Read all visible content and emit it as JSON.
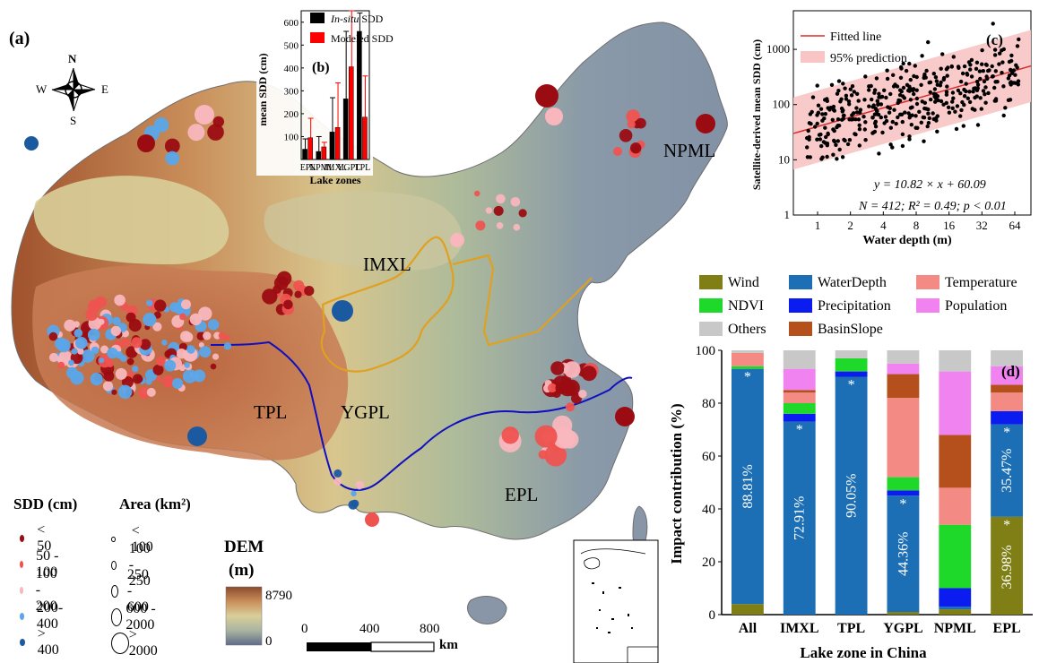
{
  "map": {
    "panel_tag": "(a)",
    "compass": {
      "n": "N",
      "s": "S",
      "e": "E",
      "w": "W"
    },
    "zones": [
      {
        "id": "tpl",
        "label": "TPL"
      },
      {
        "id": "ygpl",
        "label": "YGPL"
      },
      {
        "id": "imxl",
        "label": "IMXL"
      },
      {
        "id": "npml",
        "label": "NPML"
      },
      {
        "id": "epl",
        "label": "EPL"
      }
    ],
    "sdd_legend": {
      "title": "SDD (cm)",
      "items": [
        {
          "label": "< 50",
          "color": "#9b0c12"
        },
        {
          "label": "50 - 100",
          "color": "#ef5350"
        },
        {
          "label": "100 - 200",
          "color": "#f8b7bd"
        },
        {
          "label": "200-400",
          "color": "#5aa6ea"
        },
        {
          "label": "> 400",
          "color": "#1b5aa0"
        }
      ]
    },
    "area_legend": {
      "title": "Area (km²)",
      "items": [
        "< 100",
        "100 - 250",
        "250 - 600",
        "600 - 2000",
        "> 2000"
      ]
    },
    "dem_legend": {
      "title_top": "DEM",
      "title_unit": "(m)",
      "max": "8790",
      "min": "0"
    },
    "scale": {
      "ticks": [
        "0",
        "400",
        "800"
      ],
      "unit": "km"
    }
  },
  "chart_data": [
    {
      "id": "b",
      "type": "bar",
      "panel_tag": "(b)",
      "xlabel": "Lake zones",
      "ylabel": "mean SDD (cm)",
      "ylim": [
        0,
        650
      ],
      "yticks": [
        100,
        200,
        300,
        400,
        500,
        600
      ],
      "categories": [
        "EPL",
        "NPML",
        "IMXL",
        "YGPL",
        "TPL"
      ],
      "series": [
        {
          "name_prefix": "In-situ",
          "name_suffix": " SDD",
          "color": "#000000",
          "values": [
            45,
            35,
            120,
            265,
            560
          ],
          "error": [
            45,
            65,
            150,
            295,
            80
          ]
        },
        {
          "name": "Modeled SDD",
          "color": "#ff0000",
          "values": [
            95,
            55,
            140,
            405,
            185
          ],
          "error": [
            85,
            20,
            195,
            245,
            180
          ]
        }
      ]
    },
    {
      "id": "c",
      "type": "scatter",
      "panel_tag": "(c)",
      "xlabel": "Water depth (m)",
      "ylabel": "Satellite-derived mean SDD (cm)",
      "xscale": "log2",
      "yscale": "log10",
      "xticks": [
        "1",
        "2",
        "4",
        "8",
        "16",
        "32",
        "64"
      ],
      "yticks": [
        "1",
        "10",
        "100",
        "1000"
      ],
      "legend": [
        "Fitted line",
        "95% prediction"
      ],
      "equation": "y = 10.82 × x + 60.09",
      "stats": "N = 412; R² = 0.49; p < 0.01",
      "fit_color": "#d92b2b",
      "band_color": "#f8c4c4"
    },
    {
      "id": "d",
      "type": "bar",
      "stacked": true,
      "panel_tag": "(d)",
      "xlabel": "Lake zone in China",
      "ylabel": "Impact contribution (%)",
      "ylim": [
        0,
        100
      ],
      "yticks": [
        0,
        20,
        40,
        60,
        80,
        100
      ],
      "categories": [
        "All",
        "IMXL",
        "TPL",
        "YGPL",
        "NPML",
        "EPL"
      ],
      "series": [
        {
          "name": "Wind",
          "color": "#7f7f16",
          "values": [
            4,
            0,
            0,
            1,
            2,
            37
          ]
        },
        {
          "name": "WaterDepth",
          "color": "#1c6fb5",
          "values": [
            89,
            73,
            90,
            44,
            1,
            35
          ]
        },
        {
          "name": "Precipitation",
          "color": "#0a1cf0",
          "values": [
            0,
            3,
            2,
            2,
            7,
            5
          ]
        },
        {
          "name": "NDVI",
          "color": "#1ed82a",
          "values": [
            1,
            4,
            5,
            5,
            24,
            0
          ]
        },
        {
          "name": "Temperature",
          "color": "#f48a84",
          "values": [
            5,
            4,
            0,
            30,
            14,
            7
          ]
        },
        {
          "name": "BasinSlope",
          "color": "#b5501c",
          "values": [
            0,
            1,
            0,
            9,
            20,
            3
          ]
        },
        {
          "name": "Population",
          "color": "#f083f0",
          "values": [
            0,
            8,
            0,
            4,
            24,
            7
          ]
        },
        {
          "name": "Others",
          "color": "#c8c8c8",
          "values": [
            1,
            7,
            3,
            5,
            8,
            6
          ]
        }
      ],
      "bar_labels": [
        "88.81%",
        "72.91%",
        "90.05%",
        "44.36%",
        "",
        "35.47%"
      ],
      "wind_label": "36.98%",
      "star_marker": "*",
      "legend_order": [
        "Wind",
        "WaterDepth",
        "Temperature",
        "NDVI",
        "Precipitation",
        "Population",
        "Others",
        "BasinSlope"
      ]
    }
  ]
}
